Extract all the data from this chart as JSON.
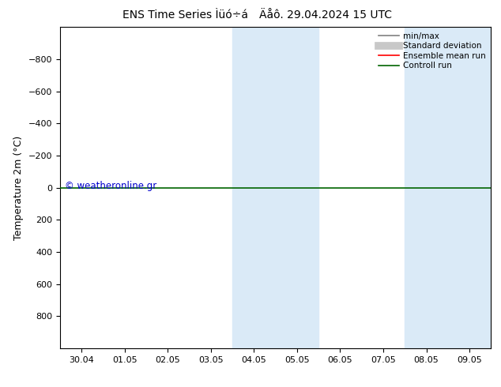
{
  "title_left": "ENS Time Series Ìüó÷á",
  "title_right": "Äåô. 29.04.2024 15 UTC",
  "ylabel": "Temperature 2m (°C)",
  "ylim": [
    -1000,
    1000
  ],
  "yticks": [
    -800,
    -600,
    -400,
    -200,
    0,
    200,
    400,
    600,
    800
  ],
  "xlabels": [
    "30.04",
    "01.05",
    "02.05",
    "03.05",
    "04.05",
    "05.05",
    "06.05",
    "07.05",
    "08.05",
    "09.05"
  ],
  "shaded_regions": [
    {
      "xstart": 4,
      "xend": 5,
      "color": "#daeaf7"
    },
    {
      "xstart": 8,
      "xend": 9,
      "color": "#daeaf7"
    }
  ],
  "horizontal_line_y": 0,
  "horizontal_line_color": "#006400",
  "background_color": "#ffffff",
  "watermark_text": "© weatheronline.gr",
  "watermark_color": "#0000cc",
  "legend_items": [
    {
      "label": "min/max",
      "color": "#808080",
      "lw": 1.2
    },
    {
      "label": "Standard deviation",
      "color": "#c8c8c8",
      "lw": 7
    },
    {
      "label": "Ensemble mean run",
      "color": "#ff0000",
      "lw": 1.2
    },
    {
      "label": "Controll run",
      "color": "#006400",
      "lw": 1.2
    }
  ]
}
